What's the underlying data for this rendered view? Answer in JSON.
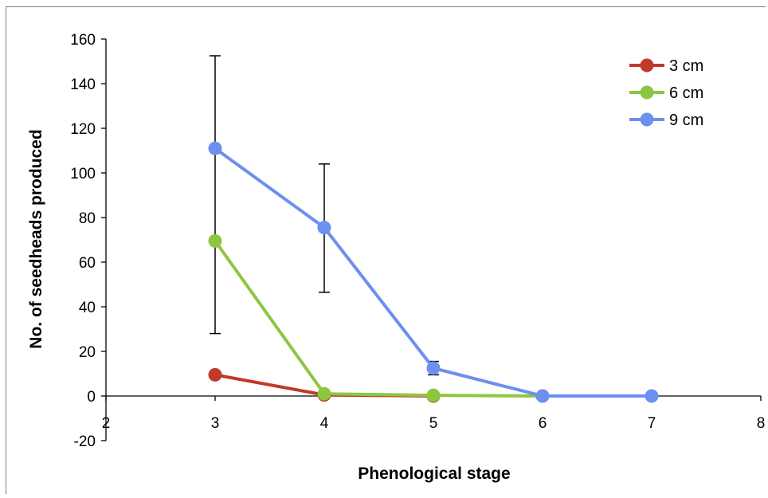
{
  "chart_data": {
    "type": "line",
    "xlabel": "Phenological stage",
    "ylabel": "No. of seedheads produced",
    "xlim": [
      2,
      8
    ],
    "ylim": [
      -20,
      160
    ],
    "x_ticks": [
      2,
      3,
      4,
      5,
      6,
      7,
      8
    ],
    "y_ticks": [
      -20,
      0,
      20,
      40,
      60,
      80,
      100,
      120,
      140,
      160
    ],
    "grid": false,
    "legend_position": "top-right",
    "series": [
      {
        "name": "3 cm",
        "color": "#c0392b",
        "x": [
          3,
          4,
          5
        ],
        "y": [
          9.5,
          0.5,
          0
        ]
      },
      {
        "name": "6 cm",
        "color": "#8dc641",
        "x": [
          3,
          4,
          5,
          6
        ],
        "y": [
          69.5,
          1,
          0.3,
          0
        ]
      },
      {
        "name": "9 cm",
        "color": "#6d8ff0",
        "x": [
          3,
          4,
          5,
          6,
          7
        ],
        "y": [
          111,
          75.5,
          12.5,
          0,
          0
        ]
      }
    ],
    "error_bars": [
      {
        "x": 3,
        "low": 28,
        "high": 152.5
      },
      {
        "x": 4,
        "low": 46.5,
        "high": 104
      },
      {
        "x": 5,
        "low": 9.5,
        "high": 15.5
      },
      {
        "x": 6,
        "low": -1.5,
        "high": 1.5
      },
      {
        "x": 7,
        "low": -1.5,
        "high": 1.5
      }
    ]
  }
}
